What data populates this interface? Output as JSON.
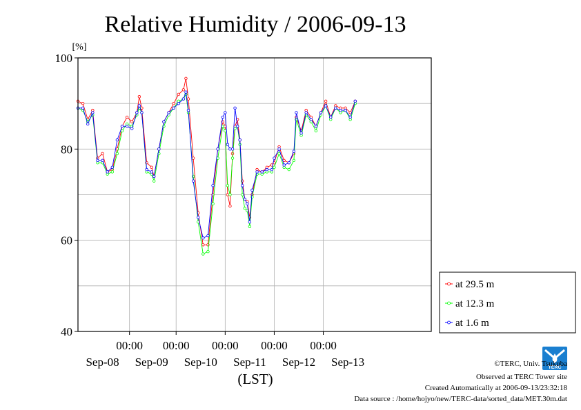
{
  "chart_data": {
    "type": "line",
    "title": "Relative Humidity / 2006-09-13",
    "ylabel": "[%]",
    "xlabel": "(LST)",
    "ylim": [
      40,
      100
    ],
    "y_ticks": [
      40,
      60,
      80,
      100
    ],
    "y_grid": [
      40,
      50,
      60,
      70,
      80,
      90,
      100
    ],
    "xlim": [
      0,
      144
    ],
    "x_time_ticks": [
      {
        "x": 21,
        "label": "00:00"
      },
      {
        "x": 40,
        "label": "00:00"
      },
      {
        "x": 60,
        "label": "00:00"
      },
      {
        "x": 80,
        "label": "00:00"
      },
      {
        "x": 100,
        "label": "00:00"
      }
    ],
    "x_date_labels": [
      {
        "x": 10,
        "label": "Sep-08"
      },
      {
        "x": 30,
        "label": "Sep-09"
      },
      {
        "x": 50,
        "label": "Sep-10"
      },
      {
        "x": 70,
        "label": "Sep-11"
      },
      {
        "x": 90,
        "label": "Sep-12"
      },
      {
        "x": 110,
        "label": "Sep-13"
      }
    ],
    "grid": true,
    "legend_position": "right-bottom",
    "series": [
      {
        "name": "at 29.5 m",
        "color": "#ff0000",
        "points": [
          [
            0,
            90.5
          ],
          [
            2,
            90
          ],
          [
            4,
            86.5
          ],
          [
            6,
            88.5
          ],
          [
            8,
            78
          ],
          [
            10,
            79
          ],
          [
            12,
            75
          ],
          [
            14,
            75.5
          ],
          [
            16,
            80
          ],
          [
            18,
            85
          ],
          [
            20,
            87
          ],
          [
            22,
            86
          ],
          [
            24,
            88
          ],
          [
            25,
            91.5
          ],
          [
            26,
            89
          ],
          [
            28,
            77
          ],
          [
            30,
            76
          ],
          [
            31,
            74
          ],
          [
            33,
            80
          ],
          [
            35,
            86
          ],
          [
            37,
            88
          ],
          [
            39,
            90
          ],
          [
            41,
            92
          ],
          [
            43,
            93
          ],
          [
            44,
            95.5
          ],
          [
            45,
            91
          ],
          [
            47,
            78
          ],
          [
            49,
            66
          ],
          [
            51,
            59
          ],
          [
            53,
            59
          ],
          [
            55,
            70
          ],
          [
            57,
            80
          ],
          [
            59,
            86
          ],
          [
            60,
            85
          ],
          [
            61,
            70
          ],
          [
            62,
            67.5
          ],
          [
            63,
            79
          ],
          [
            64,
            85
          ],
          [
            65,
            86.5
          ],
          [
            66,
            82
          ],
          [
            67,
            73
          ],
          [
            68,
            69
          ],
          [
            69,
            68.5
          ],
          [
            70,
            65
          ],
          [
            71,
            70
          ],
          [
            73,
            75.5
          ],
          [
            75,
            75
          ],
          [
            77,
            76
          ],
          [
            79,
            76.5
          ],
          [
            80,
            77
          ],
          [
            82,
            80.5
          ],
          [
            84,
            77.5
          ],
          [
            86,
            77
          ],
          [
            88,
            79
          ],
          [
            89,
            87
          ],
          [
            91,
            84
          ],
          [
            93,
            88.5
          ],
          [
            95,
            87
          ],
          [
            97,
            85
          ],
          [
            99,
            88
          ],
          [
            101,
            90.5
          ],
          [
            103,
            87
          ],
          [
            105,
            89.5
          ],
          [
            107,
            89
          ],
          [
            109,
            89
          ],
          [
            111,
            88
          ],
          [
            113,
            90.5
          ]
        ]
      },
      {
        "name": "at 12.3 m",
        "color": "#00ff00",
        "points": [
          [
            0,
            89
          ],
          [
            2,
            88.5
          ],
          [
            4,
            86
          ],
          [
            6,
            87.5
          ],
          [
            8,
            77
          ],
          [
            10,
            77
          ],
          [
            12,
            74.5
          ],
          [
            14,
            75
          ],
          [
            16,
            79
          ],
          [
            18,
            84
          ],
          [
            20,
            85.5
          ],
          [
            22,
            85
          ],
          [
            24,
            87.5
          ],
          [
            25,
            89
          ],
          [
            26,
            88
          ],
          [
            28,
            75
          ],
          [
            30,
            74.5
          ],
          [
            31,
            73
          ],
          [
            33,
            79
          ],
          [
            35,
            85
          ],
          [
            37,
            87.5
          ],
          [
            39,
            89
          ],
          [
            41,
            90.5
          ],
          [
            43,
            91
          ],
          [
            44,
            92
          ],
          [
            45,
            88
          ],
          [
            47,
            74
          ],
          [
            49,
            64
          ],
          [
            51,
            57
          ],
          [
            53,
            57.5
          ],
          [
            55,
            68
          ],
          [
            57,
            78
          ],
          [
            59,
            85
          ],
          [
            60,
            84
          ],
          [
            61,
            72
          ],
          [
            62,
            70
          ],
          [
            63,
            78
          ],
          [
            64,
            84.5
          ],
          [
            65,
            85
          ],
          [
            66,
            81
          ],
          [
            67,
            70
          ],
          [
            68,
            67
          ],
          [
            69,
            66.5
          ],
          [
            70,
            63
          ],
          [
            71,
            69.5
          ],
          [
            73,
            74.5
          ],
          [
            75,
            74.5
          ],
          [
            77,
            75
          ],
          [
            79,
            75
          ],
          [
            80,
            76
          ],
          [
            82,
            79
          ],
          [
            84,
            76
          ],
          [
            86,
            75.5
          ],
          [
            88,
            77.5
          ],
          [
            89,
            86.5
          ],
          [
            91,
            83
          ],
          [
            93,
            87.5
          ],
          [
            95,
            86
          ],
          [
            97,
            84
          ],
          [
            99,
            87.5
          ],
          [
            101,
            89.5
          ],
          [
            103,
            86.5
          ],
          [
            105,
            89
          ],
          [
            107,
            88
          ],
          [
            109,
            88.5
          ],
          [
            111,
            86.5
          ],
          [
            113,
            90
          ]
        ]
      },
      {
        "name": "at 1.6 m",
        "color": "#0000ff",
        "points": [
          [
            0,
            89
          ],
          [
            2,
            89
          ],
          [
            4,
            85.5
          ],
          [
            6,
            88
          ],
          [
            8,
            77.5
          ],
          [
            10,
            77.5
          ],
          [
            12,
            75
          ],
          [
            14,
            76
          ],
          [
            16,
            82
          ],
          [
            18,
            85
          ],
          [
            20,
            85
          ],
          [
            22,
            84.5
          ],
          [
            24,
            88
          ],
          [
            25,
            89.5
          ],
          [
            26,
            88
          ],
          [
            28,
            75.5
          ],
          [
            30,
            75
          ],
          [
            31,
            74
          ],
          [
            33,
            80
          ],
          [
            35,
            86
          ],
          [
            37,
            88
          ],
          [
            39,
            89
          ],
          [
            41,
            90
          ],
          [
            43,
            91
          ],
          [
            44,
            92.5
          ],
          [
            45,
            88.5
          ],
          [
            47,
            73
          ],
          [
            49,
            65
          ],
          [
            51,
            60.5
          ],
          [
            53,
            61
          ],
          [
            55,
            72
          ],
          [
            57,
            80
          ],
          [
            59,
            87
          ],
          [
            60,
            88
          ],
          [
            61,
            81
          ],
          [
            62,
            80
          ],
          [
            63,
            80
          ],
          [
            64,
            89
          ],
          [
            65,
            85
          ],
          [
            66,
            82
          ],
          [
            67,
            72
          ],
          [
            68,
            69
          ],
          [
            69,
            68
          ],
          [
            70,
            64
          ],
          [
            71,
            71
          ],
          [
            73,
            75
          ],
          [
            75,
            75
          ],
          [
            77,
            75.5
          ],
          [
            79,
            75.5
          ],
          [
            80,
            78
          ],
          [
            82,
            80
          ],
          [
            84,
            76.5
          ],
          [
            86,
            77
          ],
          [
            88,
            79.5
          ],
          [
            89,
            88
          ],
          [
            91,
            83.5
          ],
          [
            93,
            88
          ],
          [
            95,
            86.5
          ],
          [
            97,
            85
          ],
          [
            99,
            88
          ],
          [
            101,
            89.5
          ],
          [
            103,
            87
          ],
          [
            105,
            89
          ],
          [
            107,
            88.5
          ],
          [
            109,
            88.5
          ],
          [
            111,
            87
          ],
          [
            113,
            90.5
          ]
        ]
      }
    ]
  },
  "legend": {
    "items": [
      {
        "label": "at 29.5 m",
        "color": "#ff0000"
      },
      {
        "label": "at 12.3 m",
        "color": "#00ff00"
      },
      {
        "label": "at 1.6 m",
        "color": "#0000ff"
      }
    ]
  },
  "footer": {
    "copyright": "©TERC, Univ. Tsukuba",
    "observed": "Observed at TERC Tower site",
    "created": "Created Automatically at 2006-09-13/23:32:18",
    "source": "Data source : /home/hojyo/new/TERC-data/sorted_data/MET.30m.dat",
    "logo_text": "TERC",
    "logo_color": "#1a7fd0"
  }
}
